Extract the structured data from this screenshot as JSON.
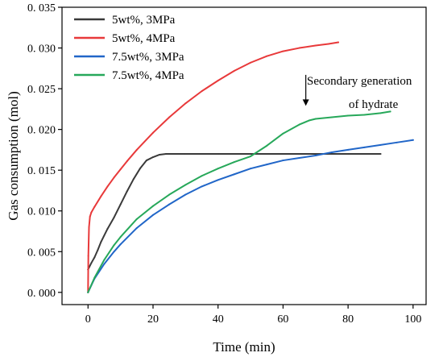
{
  "chart_data": {
    "type": "line",
    "title": "",
    "xlabel": "Time (min)",
    "ylabel": "Gas consumption (mol)",
    "xlim": [
      -8,
      104
    ],
    "ylim": [
      -0.0015,
      0.035
    ],
    "xticks": [
      0,
      20,
      40,
      60,
      80,
      100
    ],
    "yticks": [
      0.0,
      0.005,
      0.01,
      0.015,
      0.02,
      0.025,
      0.03,
      0.035
    ],
    "xtick_labels": [
      "0",
      "20",
      "40",
      "60",
      "80",
      "100"
    ],
    "ytick_labels": [
      "0. 000",
      "0. 005",
      "0. 010",
      "0. 015",
      "0. 020",
      "0. 025",
      "0. 030",
      "0. 035"
    ],
    "grid": false,
    "legend_position": "top-left",
    "series": [
      {
        "name": "5wt%, 3MPa",
        "color": "#3a3a3a",
        "x": [
          0,
          1,
          2,
          3,
          4,
          6,
          8,
          10,
          12,
          14,
          16,
          18,
          20,
          22,
          24,
          30,
          40,
          50,
          60,
          70,
          80,
          90
        ],
        "y": [
          0.0028,
          0.0036,
          0.0043,
          0.0052,
          0.0062,
          0.0078,
          0.0092,
          0.0108,
          0.0124,
          0.0139,
          0.0152,
          0.0162,
          0.0166,
          0.0169,
          0.017,
          0.017,
          0.017,
          0.017,
          0.017,
          0.017,
          0.017,
          0.017
        ]
      },
      {
        "name": "5wt%, 4MPa",
        "color": "#e8393a",
        "x": [
          0,
          0.1,
          0.3,
          0.6,
          1,
          2,
          4,
          6,
          8,
          10,
          12,
          15,
          20,
          25,
          30,
          35,
          40,
          45,
          50,
          55,
          60,
          65,
          70,
          74,
          77
        ],
        "y": [
          0.0,
          0.0045,
          0.008,
          0.0093,
          0.0098,
          0.0105,
          0.0118,
          0.013,
          0.0141,
          0.0151,
          0.0161,
          0.0175,
          0.0196,
          0.0215,
          0.0232,
          0.0247,
          0.026,
          0.0272,
          0.0282,
          0.029,
          0.0296,
          0.03,
          0.0303,
          0.0305,
          0.0307
        ]
      },
      {
        "name": "7.5wt%, 3MPa",
        "color": "#2166c8",
        "x": [
          0,
          2,
          5,
          8,
          10,
          15,
          20,
          25,
          30,
          35,
          40,
          45,
          50,
          55,
          60,
          65,
          70,
          75,
          80,
          85,
          90,
          95,
          100
        ],
        "y": [
          0.0,
          0.0017,
          0.0035,
          0.005,
          0.0059,
          0.0079,
          0.0095,
          0.0108,
          0.012,
          0.013,
          0.0138,
          0.0145,
          0.0152,
          0.0157,
          0.0162,
          0.0165,
          0.0168,
          0.0172,
          0.0175,
          0.0178,
          0.0181,
          0.0184,
          0.0187
        ]
      },
      {
        "name": "7.5wt%, 4MPa",
        "color": "#27a85a",
        "x": [
          0,
          2,
          5,
          8,
          10,
          15,
          20,
          25,
          30,
          35,
          40,
          45,
          50,
          55,
          60,
          65,
          68,
          70,
          75,
          80,
          85,
          90,
          93
        ],
        "y": [
          0.0,
          0.0018,
          0.004,
          0.0058,
          0.0068,
          0.009,
          0.0106,
          0.012,
          0.0132,
          0.0143,
          0.0152,
          0.016,
          0.0167,
          0.018,
          0.0195,
          0.0206,
          0.0211,
          0.0213,
          0.0215,
          0.0217,
          0.0218,
          0.022,
          0.0222
        ]
      }
    ],
    "annotation": {
      "lines": [
        "Secondary generation",
        "of hydrate"
      ],
      "arrow_x": 67,
      "arrow_y_from": 0.0267,
      "arrow_y_to": 0.0229
    }
  }
}
